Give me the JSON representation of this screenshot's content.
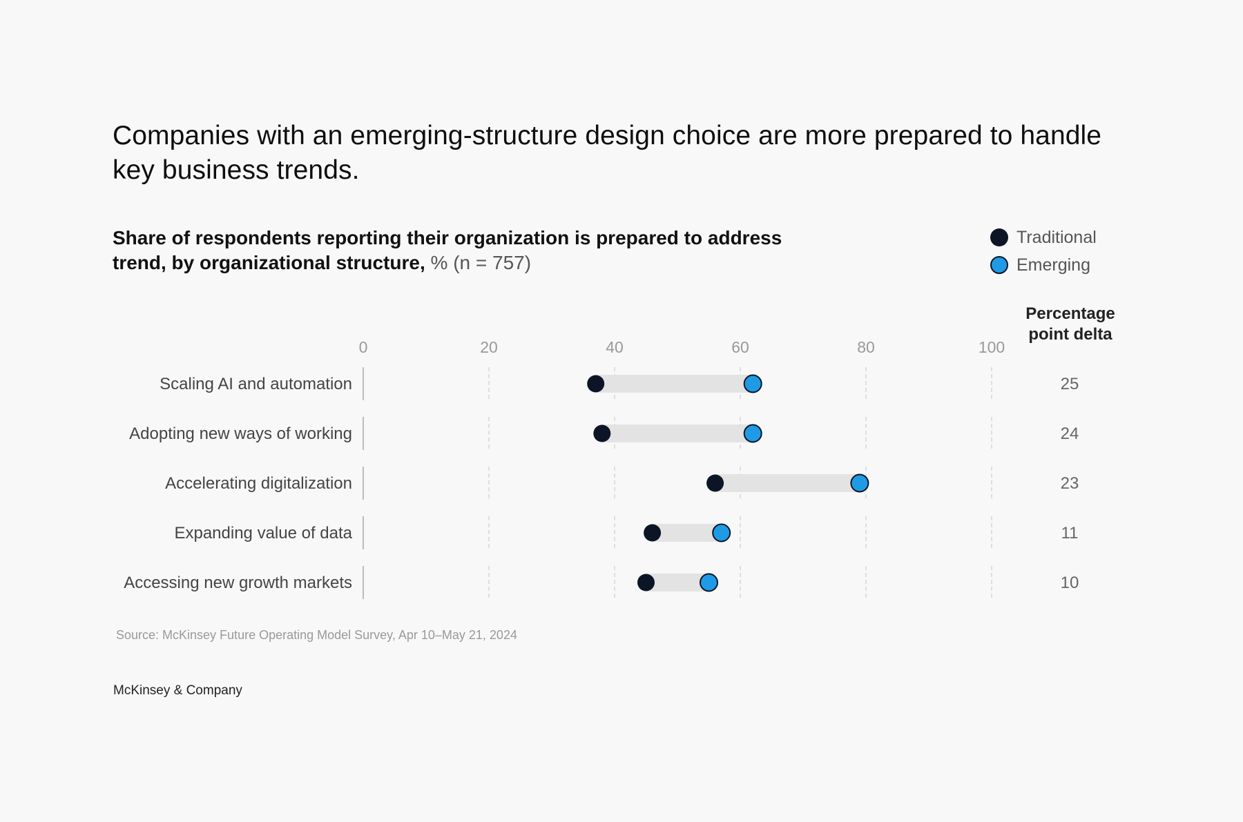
{
  "header": {
    "title": "Companies with an emerging-structure design choice are more prepared to handle key business trends.",
    "subtitle_main": "Share of respondents reporting their organization is prepared to address trend, by organizational structure,",
    "subtitle_unit": " % (n = 757)"
  },
  "legend": {
    "traditional": "Traditional",
    "emerging": "Emerging"
  },
  "delta_header": "Percentage point delta",
  "footer": {
    "source": "Source: McKinsey Future Operating Model Survey, Apr 10–May 21, 2024",
    "brand": "McKinsey & Company"
  },
  "colors": {
    "traditional": "#0b1526",
    "emerging": "#1f9be6",
    "range_bar": "#e3e3e3",
    "grid": "#d6d6d6"
  },
  "chart_data": {
    "type": "dumbbell",
    "title": "Share of respondents reporting their organization is prepared to address trend, by organizational structure, % (n = 757)",
    "xlim": [
      0,
      100
    ],
    "xticks": [
      0,
      20,
      40,
      60,
      80,
      100
    ],
    "categories": [
      "Scaling AI and automation",
      "Adopting new ways of working",
      "Accelerating digitalization",
      "Expanding value of data",
      "Accessing new growth markets"
    ],
    "series": [
      {
        "name": "Traditional",
        "values": [
          37,
          38,
          56,
          46,
          45
        ]
      },
      {
        "name": "Emerging",
        "values": [
          62,
          62,
          79,
          57,
          55
        ]
      }
    ],
    "delta": [
      25,
      24,
      23,
      11,
      10
    ],
    "legend_position": "top-right"
  }
}
